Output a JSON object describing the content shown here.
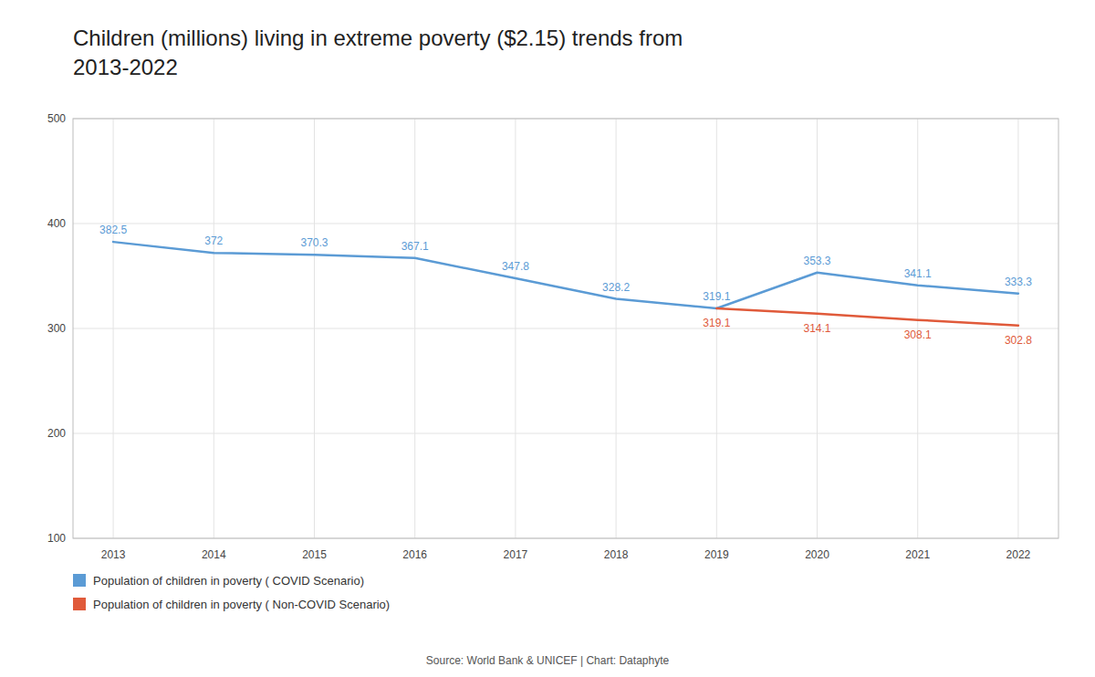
{
  "chart_data": {
    "type": "line",
    "title": [
      "Children (millions) living in extreme poverty ($2.15) trends from",
      "2013-2022"
    ],
    "x": [
      2013,
      2014,
      2015,
      2016,
      2017,
      2018,
      2019,
      2020,
      2021,
      2022
    ],
    "series": [
      {
        "name": "Population of children in poverty  ( COVID Scenario)",
        "color": "#5b9bd5",
        "values": [
          382.5,
          372.0,
          370.3,
          367.1,
          347.8,
          328.2,
          319.1,
          353.3,
          341.1,
          333.3
        ]
      },
      {
        "name": "Population of children in poverty  ( Non-COVID Scenario)",
        "color": "#e05a3a",
        "values": [
          null,
          null,
          null,
          null,
          null,
          null,
          319.1,
          314.1,
          308.1,
          302.8
        ]
      }
    ],
    "xlim": [
      2012.6,
      2022.4
    ],
    "xticks": [
      2013,
      2014,
      2015,
      2016,
      2017,
      2018,
      2019,
      2020,
      2021,
      2022
    ],
    "ylim": [
      100,
      500
    ],
    "yticks": [
      100,
      200,
      300,
      400,
      500
    ],
    "grid": true,
    "data_labels": true,
    "legend": "lower left",
    "source": "Source: World Bank & UNICEF | Chart: Dataphyte"
  }
}
